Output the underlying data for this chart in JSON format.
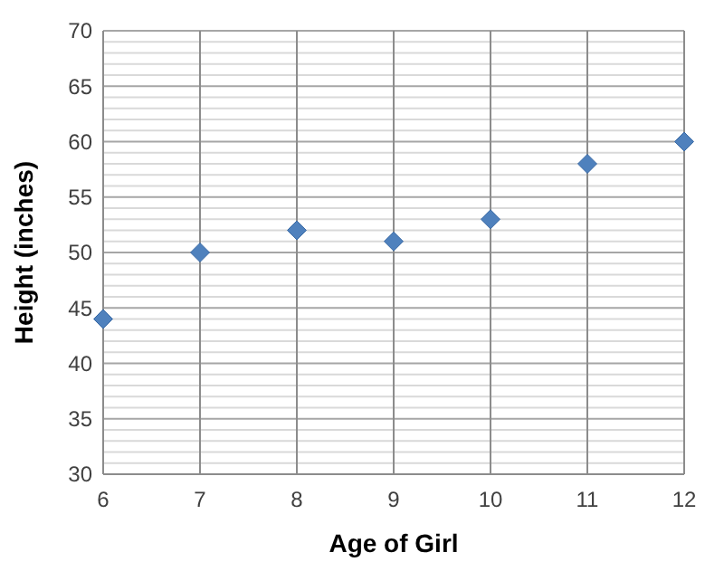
{
  "chart_data": {
    "type": "scatter",
    "xlabel": "Age of Girl",
    "ylabel": "Height (inches)",
    "x": [
      6,
      7,
      8,
      9,
      10,
      11,
      12
    ],
    "series": [
      {
        "color": "#4f81bd",
        "values": [
          44,
          50,
          52,
          51,
          53,
          58,
          60
        ]
      }
    ],
    "xlim": [
      6,
      12
    ],
    "xticks": [
      6,
      7,
      8,
      9,
      10,
      11,
      12
    ],
    "ylim": [
      30,
      70
    ],
    "yticks": [
      30,
      {
        "value": 31,
        "label": null
      },
      {
        "value": 32,
        "label": null
      },
      {
        "value": 33,
        "label": null
      },
      {
        "value": 34,
        "label": null
      },
      35,
      {
        "value": 36,
        "label": null
      },
      {
        "value": 37,
        "label": null
      },
      {
        "value": 38,
        "label": null
      },
      {
        "value": 39,
        "label": null
      },
      40,
      {
        "value": 41,
        "label": null
      },
      {
        "value": 42,
        "label": null
      },
      {
        "value": 43,
        "label": null
      },
      {
        "value": 44,
        "label": null
      },
      45,
      {
        "value": 46,
        "label": null
      },
      {
        "value": 47,
        "label": null
      },
      {
        "value": 48,
        "label": null
      },
      {
        "value": 49,
        "label": null
      },
      50,
      {
        "value": 51,
        "label": null
      },
      {
        "value": 52,
        "label": null
      },
      {
        "value": 53,
        "label": null
      },
      {
        "value": 54,
        "label": null
      },
      55,
      {
        "value": 56,
        "label": null
      },
      {
        "value": 57,
        "label": null
      },
      {
        "value": 58,
        "label": null
      },
      {
        "value": 59,
        "label": null
      },
      60,
      {
        "value": 61,
        "label": null
      },
      {
        "value": 62,
        "label": null
      },
      {
        "value": 63,
        "label": null
      },
      {
        "value": 64,
        "label": null
      },
      65,
      {
        "value": 66,
        "label": null
      },
      {
        "value": 67,
        "label": null
      },
      {
        "value": 68,
        "label": null
      },
      {
        "value": 69,
        "label": null
      },
      70
    ],
    "grid": true,
    "marker": "diamond"
  }
}
